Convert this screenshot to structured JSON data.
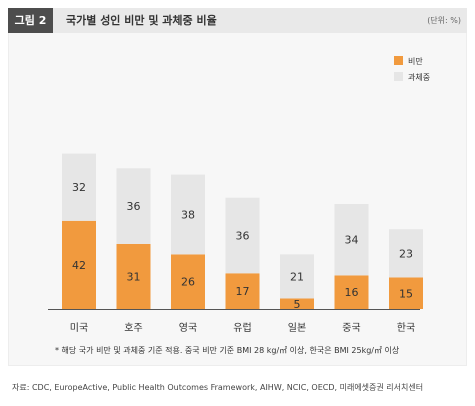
{
  "figure": {
    "number": "그림 2",
    "title": "국가별 성인 비만 및 과체중 비율",
    "unit": "(단위: %)"
  },
  "footnote": "* 해당 국가 비만 및 과체중 기준 적용. 중국 비만 기준 BMI 28 kg/㎡ 이상, 한국은 BMI 25kg/㎡ 이상",
  "source": "자료: CDC, EuropeActive, Public Health Outcomes Framework, AIHW, NCIC, OECD, 미래에셋증권 리서치센터",
  "colors": {
    "obese": "#f19a3e",
    "overweight": "#e6e6e6"
  },
  "chart_data": {
    "type": "bar",
    "stacked": true,
    "categories": [
      "미국",
      "호주",
      "영국",
      "유럽",
      "일본",
      "중국",
      "한국"
    ],
    "series": [
      {
        "name": "비만",
        "values": [
          42,
          31,
          26,
          17,
          5,
          16,
          15
        ]
      },
      {
        "name": "과체중",
        "values": [
          32,
          36,
          38,
          36,
          21,
          34,
          23
        ]
      }
    ],
    "ylim": [
      0,
      100
    ],
    "grid": false,
    "legend": "top-right"
  }
}
